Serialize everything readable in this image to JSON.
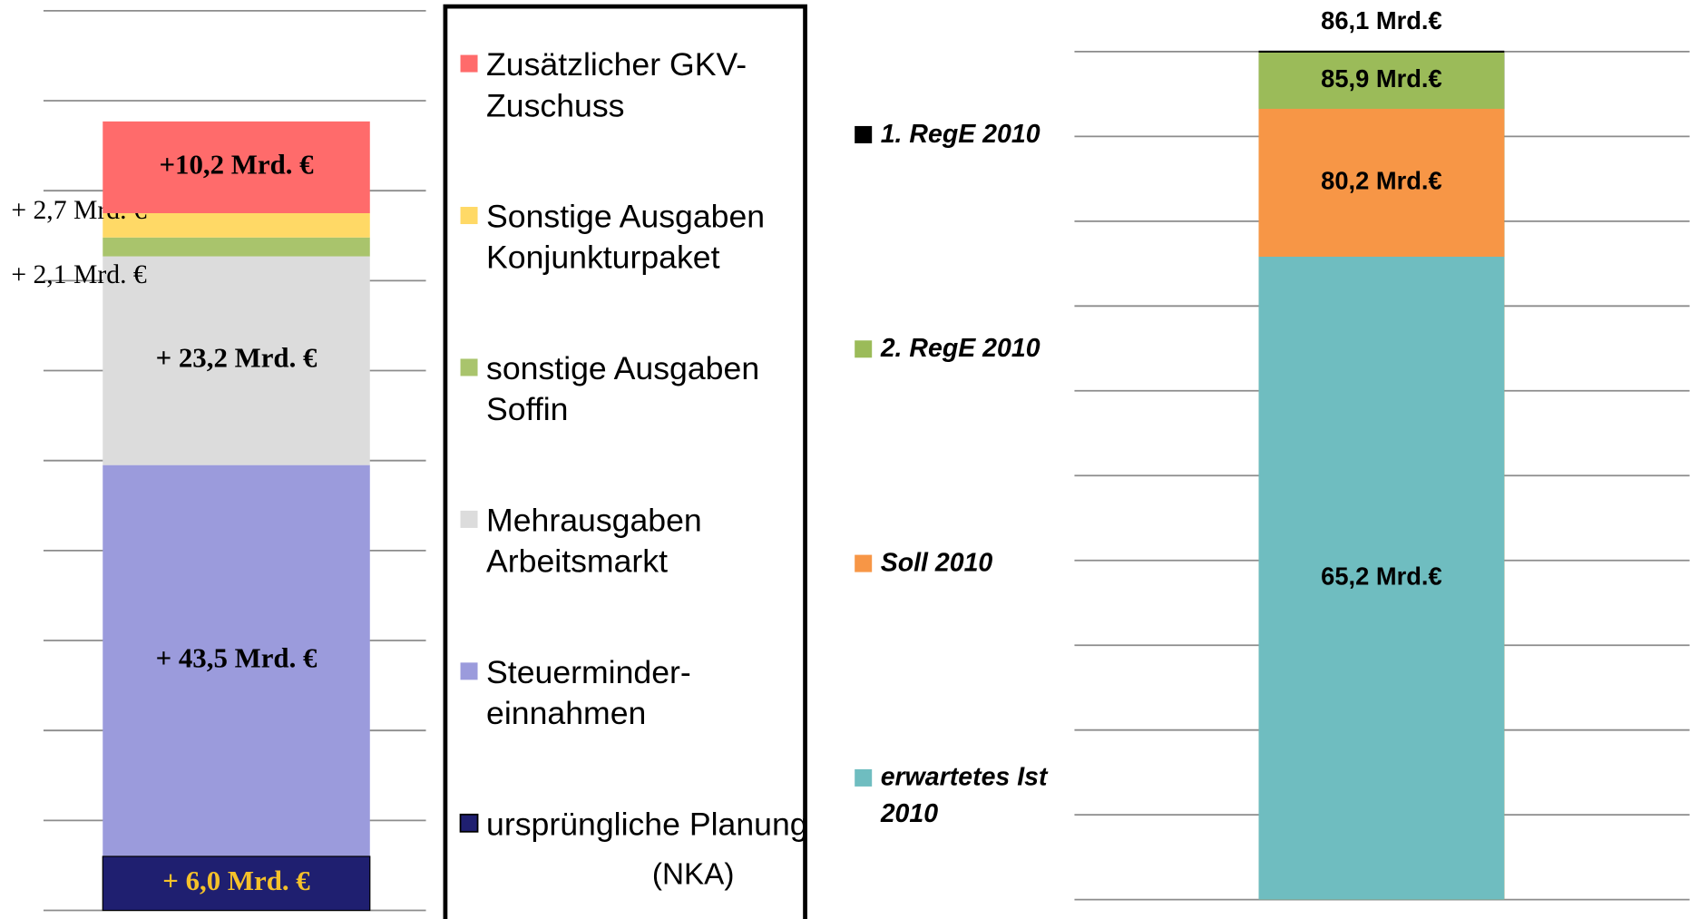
{
  "chart_data": [
    {
      "type": "bar",
      "stacked": true,
      "series": [
        {
          "name": "ursprüngliche Planung",
          "color": "#1f1f70",
          "values": [
            6.0
          ],
          "value_labels": [
            "+ 6,0 Mrd. €"
          ]
        },
        {
          "name": "Steuerminder-einnahmen",
          "color": "#9b9bdc",
          "values": [
            43.5
          ],
          "value_labels": [
            "+ 43,5 Mrd. €"
          ]
        },
        {
          "name": "Mehrausgaben Arbeitsmarkt",
          "color": "#dcdcdc",
          "values": [
            23.2
          ],
          "value_labels": [
            "+ 23,2 Mrd. €"
          ]
        },
        {
          "name": "sonstige Ausgaben Soffin",
          "color": "#a9c46c",
          "values": [
            2.1
          ],
          "value_labels": [
            "+ 2,1 Mrd. €"
          ]
        },
        {
          "name": "Sonstige Ausgaben Konjunkturpaket",
          "color": "#ffd966",
          "values": [
            2.7
          ],
          "value_labels": [
            "+ 2,7 Mrd. €"
          ]
        },
        {
          "name": "Zusätzlicher GKV-Zuschuss",
          "color": "#ff6b6b",
          "values": [
            10.2
          ],
          "value_labels": [
            "+10,2 Mrd.  €"
          ]
        }
      ],
      "annotations": [
        "(NKA)"
      ],
      "ylim": [
        0,
        100
      ],
      "yticks": [
        0,
        10,
        20,
        30,
        40,
        50,
        60,
        70,
        80,
        90,
        100
      ],
      "grid": true,
      "legend": "right"
    },
    {
      "type": "bar",
      "stacked": false,
      "series": [
        {
          "name": "1. RegE 2010",
          "color": "#000000",
          "values": [
            86.1
          ],
          "value_labels": [
            "86,1 Mrd.€"
          ]
        },
        {
          "name": "2. RegE 2010",
          "color": "#9bbb59",
          "values": [
            85.9
          ],
          "value_labels": [
            "85,9 Mrd.€"
          ]
        },
        {
          "name": "Soll 2010",
          "color": "#f79646",
          "values": [
            80.2
          ],
          "value_labels": [
            "80,2 Mrd.€"
          ]
        },
        {
          "name": "erwartetes Ist 2010",
          "color": "#6fbdc0",
          "values": [
            65.2
          ],
          "value_labels": [
            "65,2 Mrd.€"
          ]
        }
      ],
      "ylim": [
        0,
        86.1
      ],
      "yticks": [
        0,
        8.6,
        17.2,
        25.8,
        34.4,
        43,
        51.6,
        60.2,
        68.8,
        77.4,
        86
      ],
      "grid": true,
      "legend": "left"
    }
  ]
}
